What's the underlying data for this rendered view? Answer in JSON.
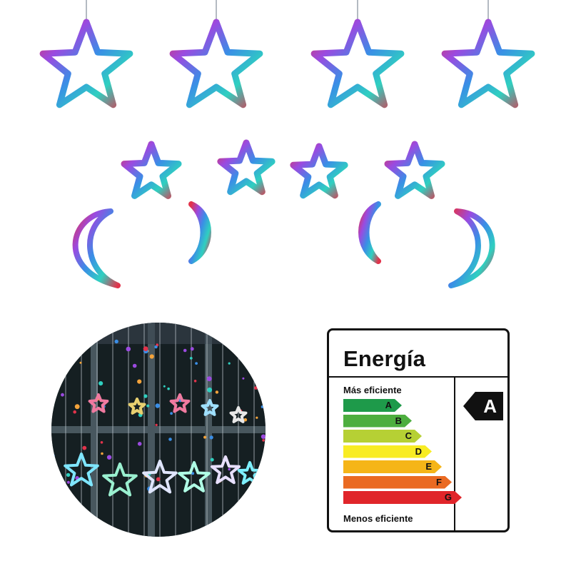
{
  "energy_label": {
    "title": "Energía",
    "most_efficient": "Más eficiente",
    "least_efficient": "Menos eficiente",
    "classes": [
      {
        "letter": "A",
        "color": "#1e9a4a"
      },
      {
        "letter": "B",
        "color": "#4dae3f"
      },
      {
        "letter": "C",
        "color": "#b6d034"
      },
      {
        "letter": "D",
        "color": "#f8ec24"
      },
      {
        "letter": "E",
        "color": "#f5b518"
      },
      {
        "letter": "F",
        "color": "#ea6a22"
      },
      {
        "letter": "G",
        "color": "#e0252a"
      }
    ],
    "rating": "A"
  },
  "product": {
    "items": [
      "star-lights",
      "moon-lights"
    ],
    "light_colors": [
      "#e2334b",
      "#3a8ee6",
      "#2fd0c0",
      "#f3a33b",
      "#9b4ae0"
    ]
  }
}
